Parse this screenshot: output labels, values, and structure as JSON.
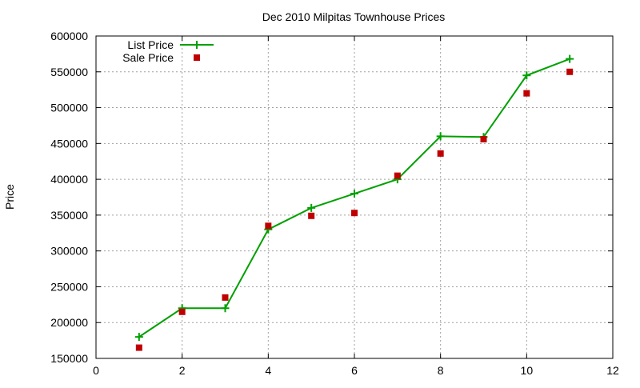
{
  "chart_data": {
    "type": "line",
    "title": "Dec 2010 Milpitas Townhouse Prices",
    "xlabel": "",
    "ylabel": "Price",
    "xlim": [
      0,
      12
    ],
    "ylim": [
      150000,
      600000
    ],
    "x_ticks": [
      0,
      2,
      4,
      6,
      8,
      10,
      12
    ],
    "y_ticks": [
      150000,
      200000,
      250000,
      300000,
      350000,
      400000,
      450000,
      500000,
      550000,
      600000
    ],
    "grid": true,
    "legend_position": "top-left",
    "series": [
      {
        "name": "List Price",
        "style": "line-with-plus-markers",
        "color": "#00a000",
        "x": [
          1,
          2,
          3,
          4,
          5,
          6,
          7,
          8,
          9,
          10,
          11
        ],
        "values": [
          180000,
          220000,
          220000,
          330000,
          360000,
          380000,
          400000,
          460000,
          459000,
          545000,
          568000
        ]
      },
      {
        "name": "Sale Price",
        "style": "square-points",
        "color": "#c00000",
        "x": [
          1,
          2,
          3,
          4,
          5,
          6,
          7,
          8,
          9,
          10,
          11
        ],
        "values": [
          165000,
          215000,
          235000,
          335000,
          349000,
          353000,
          405000,
          436000,
          456000,
          520000,
          550000
        ]
      }
    ]
  }
}
